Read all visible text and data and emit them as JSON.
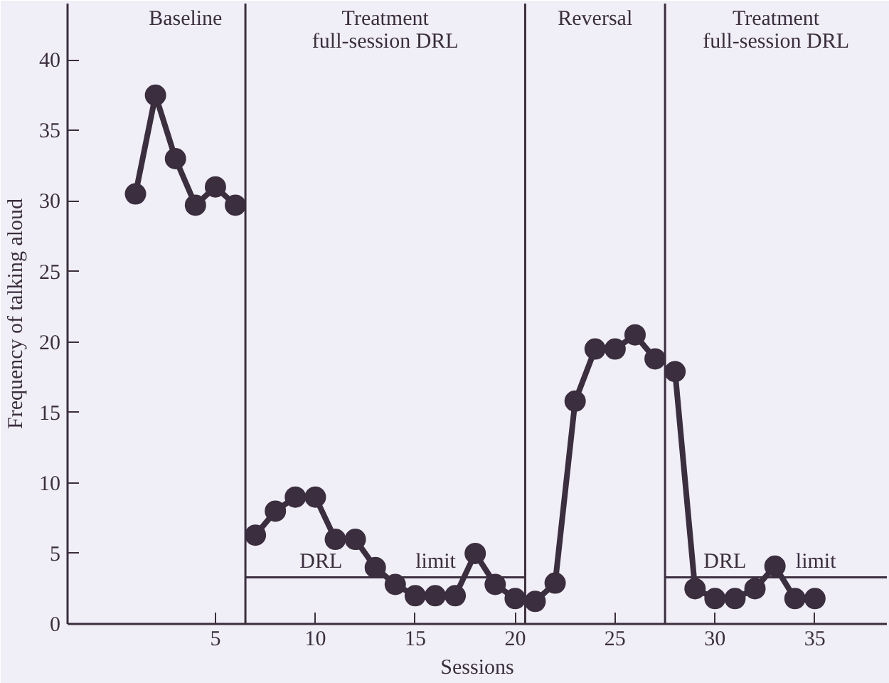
{
  "chart_data": {
    "type": "line",
    "xlabel": "Sessions",
    "ylabel": "Frequency of talking aloud",
    "xlim": [
      -2.4,
      38.6
    ],
    "ylim": [
      0,
      44
    ],
    "xticks": [
      5,
      10,
      15,
      20,
      25,
      30,
      35
    ],
    "yticks": [
      0,
      5,
      10,
      15,
      20,
      25,
      30,
      35,
      40
    ],
    "grid": false,
    "marker": "circle",
    "line_style": "solid",
    "series": [
      {
        "color": "#3b2e3e",
        "x": [
          1,
          2,
          3,
          4,
          5,
          6
        ],
        "values": [
          30.5,
          37.5,
          33,
          29.7,
          31,
          29.7
        ]
      },
      {
        "color": "#3b2e3e",
        "x": [
          7,
          8,
          9,
          10,
          11,
          12,
          13,
          14,
          15,
          16,
          17,
          18,
          19,
          20
        ],
        "values": [
          6.3,
          8,
          9,
          9,
          6,
          6,
          4,
          2.8,
          2,
          2,
          2,
          5,
          2.8,
          1.8
        ]
      },
      {
        "color": "#3b2e3e",
        "x": [
          21,
          22,
          23,
          24,
          25,
          26,
          27
        ],
        "values": [
          1.6,
          2.9,
          15.8,
          19.5,
          19.5,
          20.5,
          18.8
        ]
      },
      {
        "color": "#3b2e3e",
        "x": [
          28,
          29,
          30,
          31,
          32,
          33,
          34,
          35
        ],
        "values": [
          17.9,
          2.5,
          1.8,
          1.8,
          2.5,
          4.1,
          1.8,
          1.8
        ]
      },
      {
        "type": "line",
        "marker": "none",
        "name": "DRL limit",
        "color": "#3b2e3e",
        "x": [
          6.5,
          20.5
        ],
        "values": [
          3.3,
          3.3
        ]
      },
      {
        "type": "line",
        "marker": "none",
        "name": "DRL limit",
        "color": "#3b2e3e",
        "x": [
          27.5,
          38.6
        ],
        "values": [
          3.3,
          3.3
        ]
      }
    ],
    "ref_lines": [
      {
        "axis": "x",
        "value": 6.5,
        "color": "#3b2e3e"
      },
      {
        "axis": "x",
        "value": 20.5,
        "color": "#3b2e3e"
      },
      {
        "axis": "x",
        "value": 27.5,
        "color": "#3b2e3e"
      }
    ],
    "annotations": [
      "Baseline",
      "Treatment\nfull-session DRL",
      "Reversal",
      "Treatment\nfull-session DRL"
    ]
  }
}
